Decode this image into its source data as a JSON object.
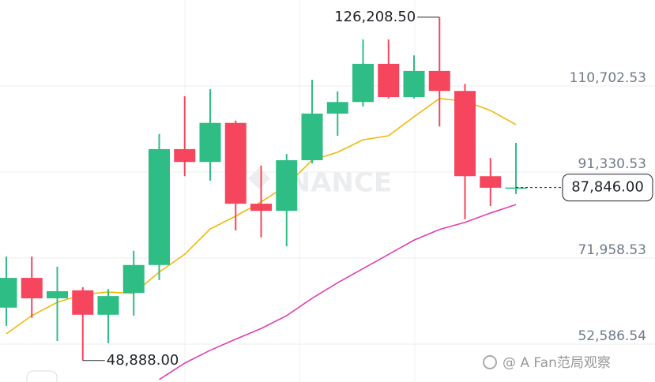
{
  "chart_data": {
    "type": "candlestick",
    "categories": [
      null,
      null,
      null,
      null,
      null,
      null,
      null,
      null,
      null,
      null,
      null,
      null,
      null,
      null,
      null,
      null,
      null,
      null,
      null,
      null,
      null
    ],
    "open": [
      60800,
      67500,
      62900,
      64700,
      59200,
      64100,
      70400,
      96500,
      93600,
      102400,
      84200,
      82600,
      94000,
      104500,
      107100,
      115700,
      108200,
      114100,
      109600,
      90400,
      87800
    ],
    "high": [
      72300,
      72300,
      70000,
      65400,
      65000,
      73600,
      99900,
      108400,
      110000,
      102900,
      92800,
      95400,
      112100,
      109500,
      121200,
      121200,
      117600,
      126208.5,
      111200,
      94500,
      97900
    ],
    "low": [
      56700,
      58500,
      53300,
      48888,
      52800,
      59000,
      67000,
      90400,
      89400,
      78200,
      76600,
      74600,
      93300,
      99500,
      106100,
      107900,
      107900,
      101600,
      80700,
      83700,
      86400
    ],
    "close": [
      67500,
      62900,
      64500,
      59200,
      63400,
      70400,
      96500,
      93600,
      102400,
      84200,
      82600,
      94000,
      104500,
      107100,
      115700,
      108200,
      114100,
      109600,
      90400,
      87800,
      87846
    ],
    "up_color": "#2ebd85",
    "down_color": "#f6465d",
    "series": [
      {
        "color": "#f0b90b",
        "values": [
          54900,
          59000,
          62000,
          63800,
          64300,
          64000,
          68800,
          72800,
          78500,
          81400,
          84600,
          88300,
          94000,
          95800,
          98600,
          99500,
          103800,
          107900,
          107300,
          105200,
          102000
        ]
      },
      {
        "color": "#e040b0",
        "values": [
          null,
          null,
          null,
          null,
          null,
          null,
          44600,
          48300,
          51200,
          53700,
          56100,
          59000,
          62900,
          66400,
          69600,
          72800,
          76000,
          78400,
          80000,
          82100,
          84000
        ]
      }
    ],
    "ylim": [
      44054,
      130076
    ],
    "yticks": [
      {
        "value": 52586.54,
        "label": "52,586.54"
      },
      {
        "value": 71958.53,
        "label": "71,958.53"
      },
      {
        "value": 91330.53,
        "label": "91,330.53"
      },
      {
        "value": 110702.53,
        "label": "110,702.53"
      }
    ],
    "grid": true,
    "high_annotation": {
      "value": 126208.5,
      "label": "126,208.50"
    },
    "low_annotation": {
      "value": 48888,
      "label": "48,888.00"
    },
    "last_price": {
      "value": 87846,
      "label": "87,846.00"
    },
    "watermark": "INANCE",
    "footer": "@ A Fan范局观察"
  }
}
